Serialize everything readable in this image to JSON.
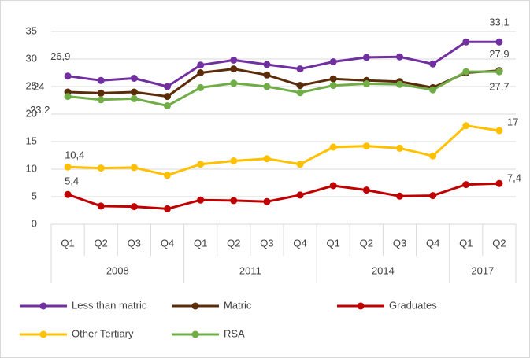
{
  "chart_data": {
    "type": "line",
    "categories": [
      "Q1",
      "Q2",
      "Q3",
      "Q4",
      "Q1",
      "Q2",
      "Q3",
      "Q4",
      "Q1",
      "Q2",
      "Q3",
      "Q4",
      "Q1",
      "Q2"
    ],
    "groups": [
      {
        "label": "2008",
        "span": 4
      },
      {
        "label": "2011",
        "span": 4
      },
      {
        "label": "2014",
        "span": 4
      },
      {
        "label": "2017",
        "span": 2
      }
    ],
    "ylim": [
      0,
      35
    ],
    "yticks": [
      0,
      5,
      10,
      15,
      20,
      25,
      30,
      35
    ],
    "grid": true,
    "legend": "bottom",
    "series": [
      {
        "name": "Less than matric",
        "color": "#7030a0",
        "values": [
          26.9,
          26.1,
          26.5,
          25.0,
          28.9,
          29.8,
          29.0,
          28.2,
          29.5,
          30.3,
          30.4,
          29.1,
          33.1,
          33.1
        ],
        "value_labels": [
          "26,9",
          null,
          null,
          null,
          null,
          null,
          null,
          null,
          null,
          null,
          null,
          null,
          null,
          "33,1"
        ]
      },
      {
        "name": "Matric",
        "color": "#5b2c0a",
        "values": [
          24,
          23.8,
          24.0,
          23.2,
          27.5,
          28.2,
          27.1,
          25.2,
          26.4,
          26.1,
          25.9,
          24.8,
          27.5,
          27.9
        ],
        "value_labels": [
          "24",
          null,
          null,
          null,
          null,
          null,
          null,
          null,
          null,
          null,
          null,
          null,
          null,
          "27,9"
        ]
      },
      {
        "name": "Graduates",
        "color": "#c00000",
        "values": [
          5.4,
          3.3,
          3.2,
          2.8,
          4.4,
          4.3,
          4.1,
          5.3,
          7.0,
          6.2,
          5.1,
          5.2,
          7.2,
          7.4
        ],
        "value_labels": [
          "5,4",
          null,
          null,
          null,
          null,
          null,
          null,
          null,
          null,
          null,
          null,
          null,
          null,
          "7,4"
        ]
      },
      {
        "name": "Other Tertiary",
        "color": "#ffc000",
        "values": [
          10.4,
          10.2,
          10.3,
          8.9,
          10.9,
          11.5,
          11.9,
          10.9,
          14.0,
          14.2,
          13.8,
          12.4,
          17.9,
          17
        ],
        "value_labels": [
          "10,4",
          null,
          null,
          null,
          null,
          null,
          null,
          null,
          null,
          null,
          null,
          null,
          null,
          "17"
        ]
      },
      {
        "name": "RSA",
        "color": "#70ad47",
        "values": [
          23.2,
          22.6,
          22.8,
          21.5,
          24.8,
          25.6,
          25.0,
          23.9,
          25.2,
          25.5,
          25.4,
          24.4,
          27.7,
          27.7
        ],
        "value_labels": [
          "23,2",
          null,
          null,
          null,
          null,
          null,
          null,
          null,
          null,
          null,
          null,
          null,
          null,
          "27,7"
        ]
      }
    ]
  }
}
